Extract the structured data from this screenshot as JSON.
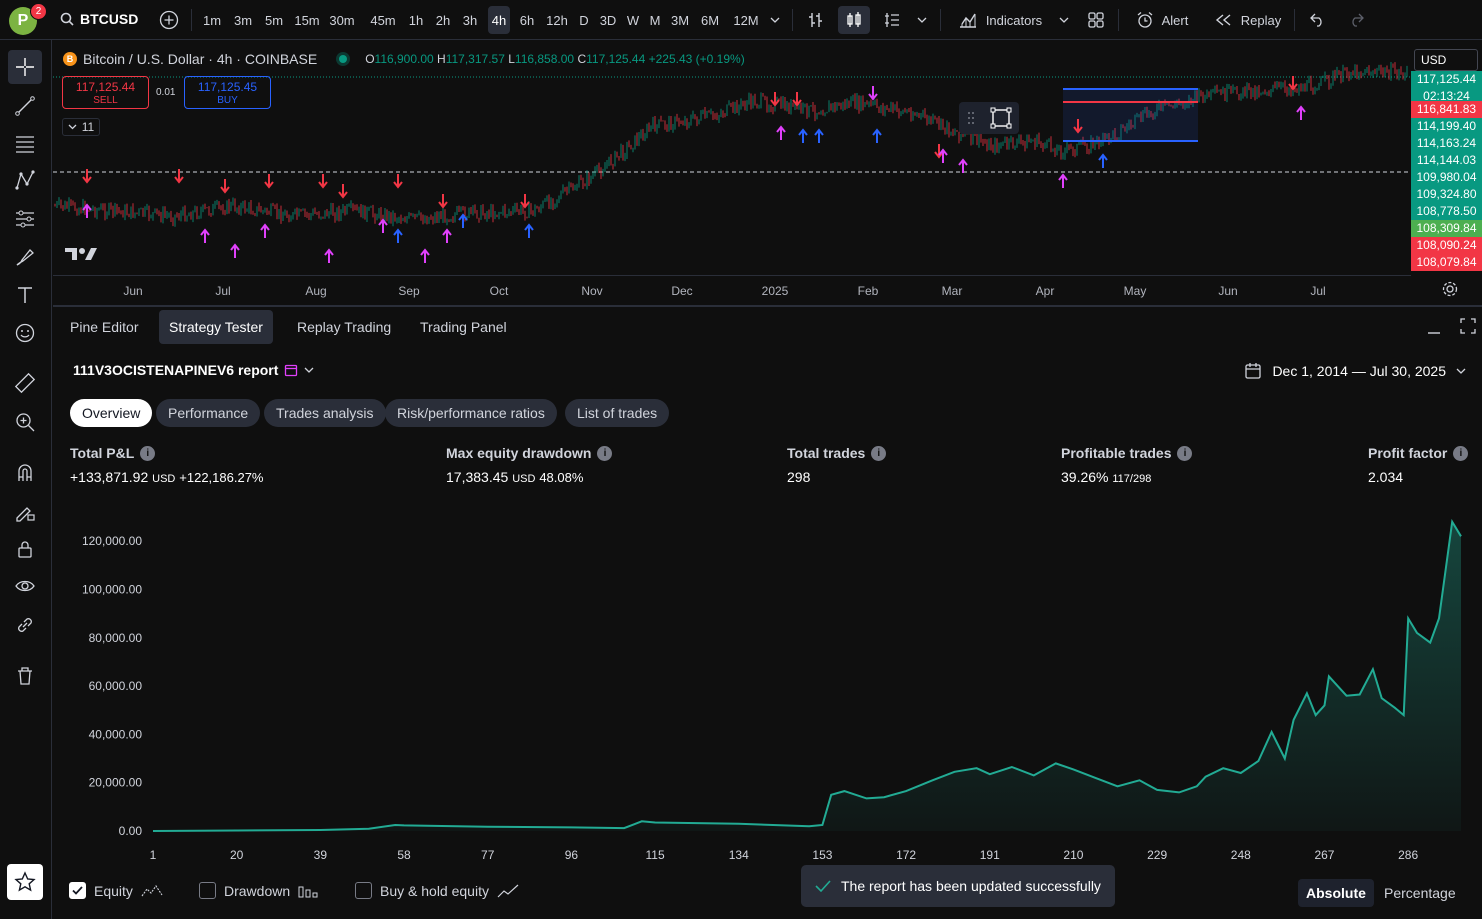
{
  "toolbar": {
    "avatar_letter": "P",
    "notification_count": "2",
    "symbol": "BTCUSD",
    "intervals": [
      "1m",
      "3m",
      "5m",
      "15m",
      "30m",
      "45m",
      "1h",
      "2h",
      "3h",
      "4h",
      "6h",
      "12h",
      "D",
      "3D",
      "W",
      "M",
      "3M",
      "6M",
      "12M"
    ],
    "active_interval": "4h",
    "indicators_label": "Indicators",
    "alert_label": "Alert",
    "replay_label": "Replay"
  },
  "chart": {
    "title": "Bitcoin / U.S. Dollar · 4h · COINBASE",
    "ohlc": {
      "o_label": "O",
      "o": "116,900.00",
      "h_label": "H",
      "h": "117,317.57",
      "l_label": "L",
      "l": "116,858.00",
      "c_label": "C",
      "c": "117,125.44",
      "change": "+225.43 (+0.19%)"
    },
    "sell": {
      "price": "117,125.44",
      "label": "SELL"
    },
    "buy": {
      "price": "117,125.45",
      "label": "BUY"
    },
    "spread": "0.01",
    "indicator_count": "11",
    "currency": "USD",
    "price_tags": [
      {
        "value": "117,125.44",
        "color": "#089981"
      },
      {
        "value": "02:13:24",
        "color": "#089981"
      },
      {
        "value": "116,841.83",
        "color": "#f23645"
      },
      {
        "value": "114,199.40",
        "color": "#089981"
      },
      {
        "value": "114,163.24",
        "color": "#089981"
      },
      {
        "value": "114,144.03",
        "color": "#089981"
      },
      {
        "value": "109,980.04",
        "color": "#089981"
      },
      {
        "value": "109,324.80",
        "color": "#089981"
      },
      {
        "value": "108,778.50",
        "color": "#089981"
      },
      {
        "value": "108,309.84",
        "color": "#4caf50"
      },
      {
        "value": "108,090.24",
        "color": "#f23645"
      },
      {
        "value": "108,079.84",
        "color": "#f23645"
      }
    ],
    "time_ticks": [
      {
        "label": "Jun",
        "x": 80
      },
      {
        "label": "Jul",
        "x": 170
      },
      {
        "label": "Aug",
        "x": 263
      },
      {
        "label": "Sep",
        "x": 356
      },
      {
        "label": "Oct",
        "x": 446
      },
      {
        "label": "Nov",
        "x": 539
      },
      {
        "label": "Dec",
        "x": 629
      },
      {
        "label": "2025",
        "x": 722
      },
      {
        "label": "Feb",
        "x": 815
      },
      {
        "label": "Mar",
        "x": 899
      },
      {
        "label": "Apr",
        "x": 992
      },
      {
        "label": "May",
        "x": 1082
      },
      {
        "label": "Jun",
        "x": 1175
      },
      {
        "label": "Jul",
        "x": 1265
      }
    ]
  },
  "panel": {
    "tabs": [
      "Pine Editor",
      "Strategy Tester",
      "Replay Trading",
      "Trading Panel"
    ],
    "active_tab": "Strategy Tester",
    "report_title": "111V3OCISTENAPINEV6 report",
    "date_range": "Dec 1, 2014 — Jul 30, 2025",
    "subtabs": [
      "Overview",
      "Performance",
      "Trades analysis",
      "Risk/performance ratios",
      "List of trades"
    ],
    "active_subtab": "Overview",
    "metrics": {
      "total_pnl": {
        "label": "Total P&L",
        "value": "+133,871.92",
        "unit": "USD",
        "pct": "+122,186.27%"
      },
      "max_dd": {
        "label": "Max equity drawdown",
        "value": "17,383.45",
        "unit": "USD",
        "pct": "48.08%"
      },
      "total_trades": {
        "label": "Total trades",
        "value": "298"
      },
      "profitable": {
        "label": "Profitable trades",
        "value": "39.26%",
        "sub": "117/298"
      },
      "profit_factor": {
        "label": "Profit factor",
        "value": "2.034"
      }
    },
    "footer": {
      "equity_label": "Equity",
      "drawdown_label": "Drawdown",
      "buyhold_label": "Buy & hold equity",
      "toast": "The report has been updated successfully",
      "absolute_label": "Absolute",
      "percentage_label": "Percentage"
    }
  },
  "chart_data": {
    "type": "area",
    "title": "",
    "xlabel": "",
    "ylabel": "",
    "series": [
      {
        "name": "Equity",
        "color": "#22ab94"
      }
    ],
    "x_ticks": [
      1,
      20,
      39,
      58,
      77,
      96,
      115,
      134,
      153,
      172,
      191,
      210,
      229,
      248,
      267,
      286
    ],
    "y_ticks": [
      0,
      20000,
      40000,
      60000,
      80000,
      100000,
      120000
    ],
    "y_tick_labels": [
      "0.00",
      "20,000.00",
      "40,000.00",
      "60,000.00",
      "80,000.00",
      "100,000.00",
      "120,000.00"
    ],
    "xlim": [
      1,
      298
    ],
    "ylim": [
      0,
      130000
    ],
    "x": [
      1,
      20,
      39,
      50,
      56,
      58,
      77,
      96,
      108,
      112,
      115,
      134,
      150,
      153,
      155,
      158,
      163,
      167,
      172,
      178,
      183,
      188,
      191,
      196,
      201,
      206,
      210,
      215,
      220,
      225,
      229,
      234,
      238,
      240,
      244,
      248,
      252,
      255,
      258,
      260,
      263,
      265,
      267,
      268,
      270,
      272,
      275,
      278,
      280,
      283,
      285,
      286,
      288,
      291,
      293,
      296,
      298
    ],
    "values": [
      0,
      200,
      400,
      900,
      2500,
      2300,
      1800,
      1500,
      1200,
      4000,
      3500,
      3000,
      2000,
      2500,
      15000,
      16500,
      13500,
      14000,
      16500,
      21000,
      24500,
      26000,
      23500,
      26500,
      23000,
      28000,
      25500,
      22000,
      18500,
      21000,
      17000,
      16000,
      18500,
      22500,
      26000,
      24000,
      29000,
      41000,
      30000,
      46000,
      57000,
      48000,
      52000,
      64000,
      60000,
      56000,
      56500,
      67000,
      55000,
      51000,
      48000,
      88000,
      82000,
      78000,
      88000,
      128000,
      122000
    ]
  }
}
